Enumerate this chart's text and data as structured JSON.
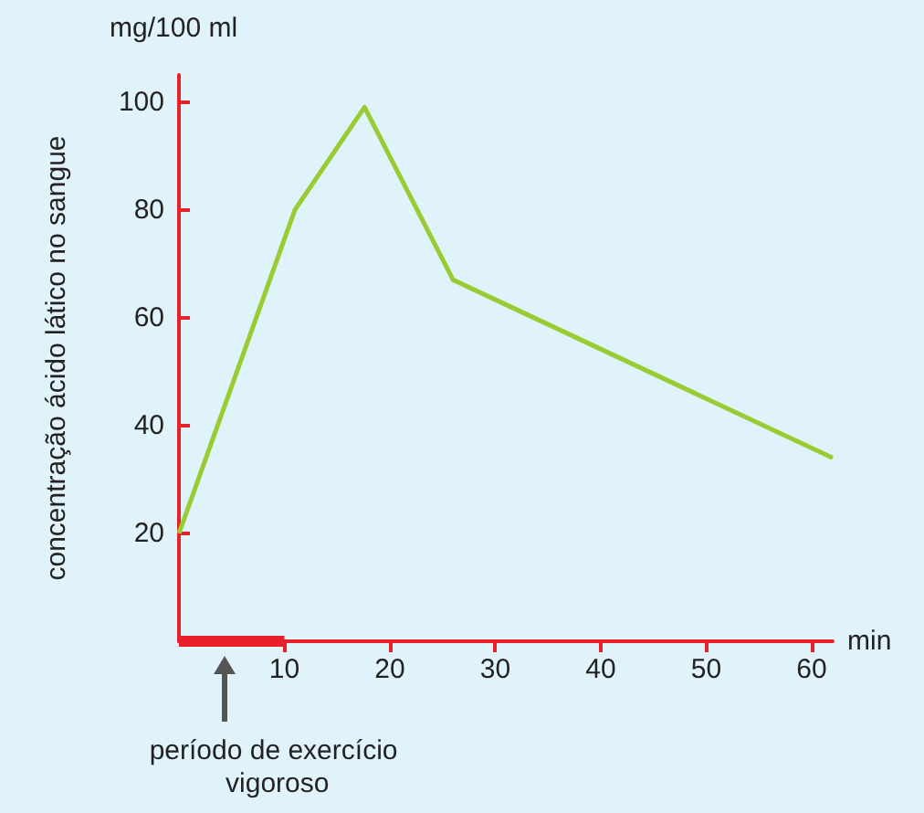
{
  "chart_data": {
    "type": "line",
    "xlabel": "min",
    "ylabel": "concentração ácido lático no sangue",
    "annotations": [
      "mg/100 ml"
    ],
    "x": [
      0,
      11,
      17.6,
      26,
      62
    ],
    "series": [
      {
        "color": "#99cc33",
        "values": [
          20,
          80,
          99,
          67,
          34
        ]
      },
      {
        "name": "período de exercício vigoroso",
        "color": "#e8202a",
        "x": [
          0,
          10
        ],
        "values": [
          0,
          0
        ]
      }
    ],
    "xlim": [
      0,
      62
    ],
    "ylim": [
      0,
      105
    ],
    "xticks": [
      10,
      20,
      30,
      40,
      50,
      60
    ],
    "yticks": [
      20,
      40,
      60,
      80,
      100
    ],
    "marker": "none",
    "line_style": "solid"
  }
}
